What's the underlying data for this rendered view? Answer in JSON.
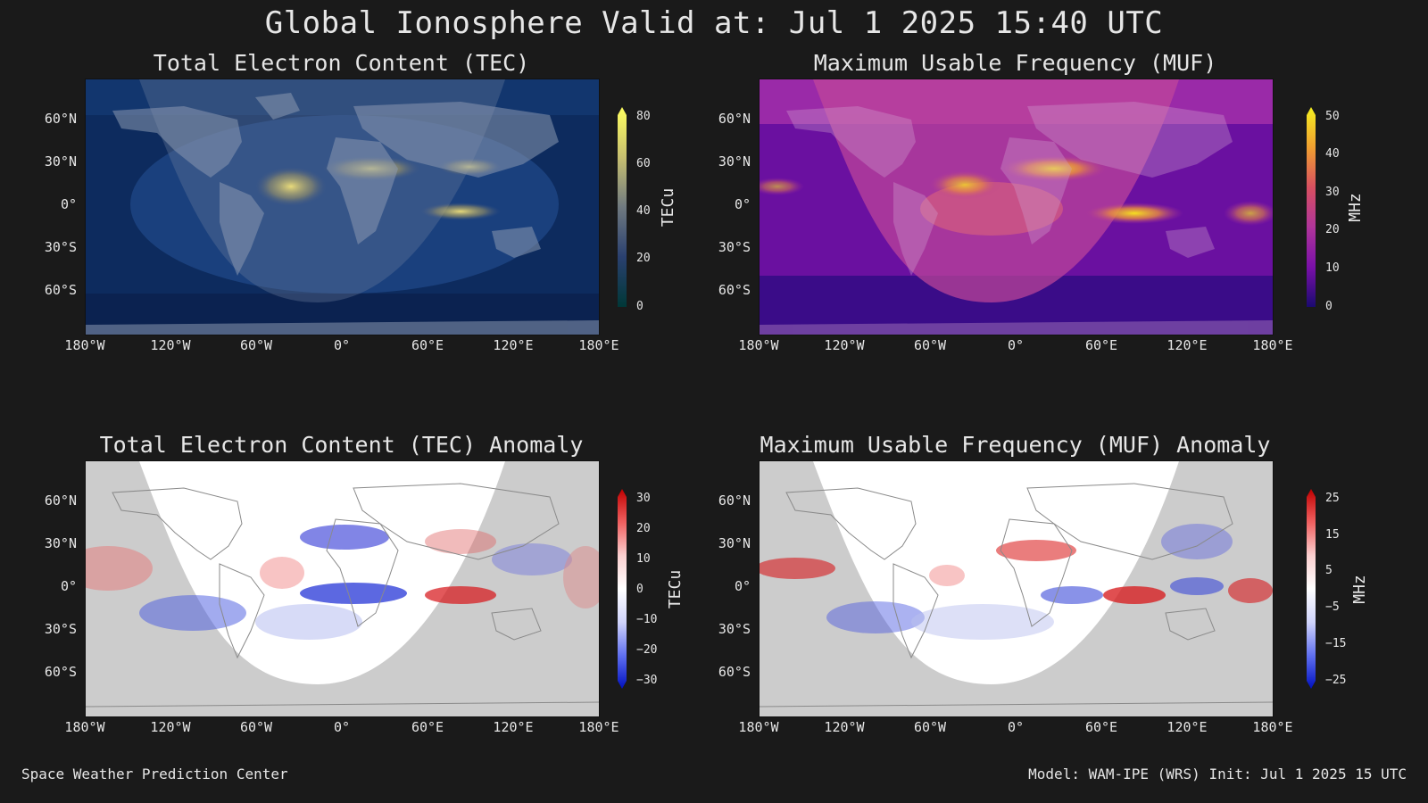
{
  "header": {
    "title": "Global Ionosphere Valid at: Jul 1 2025 15:40 UTC"
  },
  "axes": {
    "lat_labels": [
      "60°N",
      "30°N",
      "0°",
      "30°S",
      "60°S"
    ],
    "lon_labels": [
      "180°W",
      "120°W",
      "60°W",
      "0°",
      "60°E",
      "120°E",
      "180°E"
    ]
  },
  "panels": [
    {
      "title": "Total Electron Content (TEC)",
      "unit": "TECu",
      "colorbar_ticks": [
        "80",
        "60",
        "40",
        "20",
        "0"
      ]
    },
    {
      "title": "Maximum Usable Frequency (MUF)",
      "unit": "MHz",
      "colorbar_ticks": [
        "50",
        "40",
        "30",
        "20",
        "10",
        "0"
      ]
    },
    {
      "title": "Total Electron Content (TEC) Anomaly",
      "unit": "TECu",
      "colorbar_ticks": [
        "30",
        "20",
        "10",
        "0",
        "−10",
        "−20",
        "−30"
      ]
    },
    {
      "title": "Maximum Usable Frequency (MUF) Anomaly",
      "unit": "MHz",
      "colorbar_ticks": [
        "25",
        "15",
        "5",
        "−5",
        "−15",
        "−25"
      ]
    }
  ],
  "footer": {
    "left": "Space Weather Prediction Center",
    "right": "Model: WAM-IPE (WRS) Init: Jul 1 2025 15 UTC"
  },
  "colors": {
    "background": "#1a1a1a",
    "tec_ocean": "#0d2b5e",
    "tec_high": "#f2e27a",
    "muf_low": "#2a0a78",
    "muf_mid": "#b0359a",
    "muf_high": "#f5e020",
    "anomaly_positive": "#d7191c",
    "anomaly_negative": "#2b3bd8",
    "night_shade": "#9a9a9a"
  }
}
